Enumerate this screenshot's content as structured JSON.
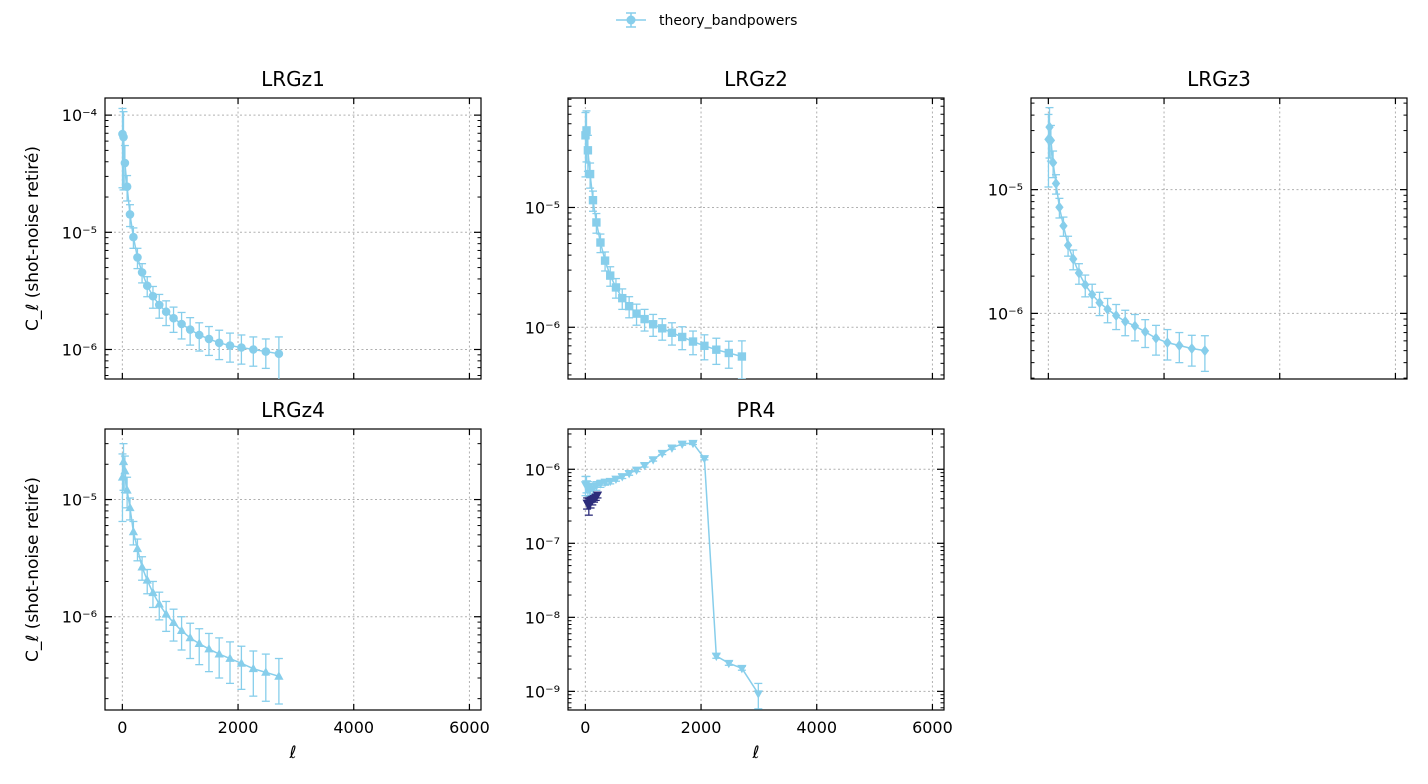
{
  "legend": {
    "label": "theory_bandpowers",
    "color": "#87ceeb"
  },
  "chart_data": [
    {
      "type": "line",
      "title": "LRGz1",
      "ylabel": "C_ℓ  (shot-noise retiré)",
      "yscale": "log",
      "xlim": [
        -300,
        6200
      ],
      "ylim": [
        5.6e-07,
        0.00014
      ],
      "show_x_ticklabels": false,
      "marker": "circle",
      "grid": true,
      "series": [
        {
          "name": "theory_bandpowers",
          "color": "#87ceeb",
          "x": [
            2,
            20,
            44,
            82,
            132,
            191,
            261,
            341,
            430,
            529,
            638,
            757,
            885,
            1024,
            1172,
            1329,
            1497,
            1674,
            1861,
            2058,
            2264,
            2480,
            2706
          ],
          "y": [
            6.9e-05,
            6.5e-05,
            3.9e-05,
            2.45e-05,
            1.42e-05,
            9.1e-06,
            6.1e-06,
            4.55e-06,
            3.5e-06,
            2.85e-06,
            2.4e-06,
            2.1e-06,
            1.85e-06,
            1.65e-06,
            1.48e-06,
            1.33e-06,
            1.23e-06,
            1.14e-06,
            1.08e-06,
            1.04e-06,
            1e-06,
            9.6e-07,
            9.2e-07
          ],
          "err": [
            4.5e-05,
            4.2e-05,
            1.6e-05,
            6e-06,
            3e-06,
            1.8e-06,
            1.2e-06,
            8.5e-07,
            6.8e-07,
            6e-07,
            5.5e-07,
            5e-07,
            4.5e-07,
            4.2e-07,
            3.9e-07,
            3.6e-07,
            3.4e-07,
            3.2e-07,
            3e-07,
            2.9e-07,
            2.8e-07,
            2.7e-07,
            3.6e-07
          ]
        }
      ]
    },
    {
      "type": "line",
      "title": "LRGz2",
      "ylabel": "",
      "yscale": "log",
      "xlim": [
        -300,
        6200
      ],
      "ylim": [
        3.7e-07,
        8.2e-05
      ],
      "show_x_ticklabels": false,
      "marker": "square",
      "grid": true,
      "series": [
        {
          "name": "theory_bandpowers",
          "color": "#87ceeb",
          "x": [
            2,
            20,
            44,
            82,
            132,
            191,
            261,
            341,
            430,
            529,
            638,
            757,
            885,
            1024,
            1172,
            1329,
            1497,
            1674,
            1861,
            2058,
            2264,
            2480,
            2706
          ],
          "y": [
            4e-05,
            4.4e-05,
            3e-05,
            1.9e-05,
            1.15e-05,
            7.5e-06,
            5.1e-06,
            3.6e-06,
            2.7e-06,
            2.15e-06,
            1.75e-06,
            1.5e-06,
            1.3e-06,
            1.17e-06,
            1.06e-06,
            9.8e-07,
            9e-07,
            8.3e-07,
            7.6e-07,
            7e-07,
            6.5e-07,
            6.1e-07,
            5.7e-07
          ],
          "err": [
            2.2e-05,
            2e-05,
            1e-05,
            4.5e-06,
            2.2e-06,
            1.4e-06,
            9e-07,
            6.5e-07,
            5e-07,
            4e-07,
            3.4e-07,
            3e-07,
            2.6e-07,
            2.4e-07,
            2.2e-07,
            2e-07,
            1.9e-07,
            1.8e-07,
            1.7e-07,
            1.65e-07,
            1.6e-07,
            1.55e-07,
            2e-07
          ]
        }
      ]
    },
    {
      "type": "line",
      "title": "LRGz3",
      "ylabel": "",
      "yscale": "log",
      "xlim": [
        -300,
        6200
      ],
      "ylim": [
        2.95e-07,
        5.5e-05
      ],
      "show_x_ticklabels": false,
      "marker": "diamond",
      "grid": true,
      "series": [
        {
          "name": "theory_bandpowers",
          "color": "#87ceeb",
          "x": [
            2,
            20,
            44,
            82,
            132,
            191,
            261,
            341,
            430,
            529,
            638,
            757,
            885,
            1024,
            1172,
            1329,
            1497,
            1674,
            1861,
            2058,
            2264,
            2480,
            2706
          ],
          "y": [
            2.55e-05,
            3.2e-05,
            2.5e-05,
            1.65e-05,
            1.12e-05,
            7.2e-06,
            5.1e-06,
            3.55e-06,
            2.75e-06,
            2.12e-06,
            1.7e-06,
            1.42e-06,
            1.22e-06,
            1.08e-06,
            9.6e-07,
            8.6e-07,
            7.9e-07,
            7.1e-07,
            6.3e-07,
            5.8e-07,
            5.5e-07,
            5.2e-07,
            5e-07
          ],
          "err": [
            1.5e-05,
            1.4e-05,
            8e-06,
            4e-06,
            2e-06,
            1.3e-06,
            9e-07,
            6.5e-07,
            5e-07,
            4e-07,
            3.4e-07,
            3e-07,
            2.6e-07,
            2.4e-07,
            2.2e-07,
            2e-07,
            1.9e-07,
            1.8e-07,
            1.7e-07,
            1.6e-07,
            1.5e-07,
            1.45e-07,
            1.6e-07
          ]
        }
      ]
    },
    {
      "type": "line",
      "title": "LRGz4",
      "ylabel": "C_ℓ  (shot-noise retiré)",
      "yscale": "log",
      "xlim": [
        -300,
        6200
      ],
      "ylim": [
        1.6e-07,
        4e-05
      ],
      "show_x_ticklabels": true,
      "xlabel": "ℓ",
      "xticks": [
        0,
        2000,
        4000,
        6000
      ],
      "marker": "triangle-up",
      "grid": true,
      "series": [
        {
          "name": "theory_bandpowers",
          "color": "#87ceeb",
          "x": [
            2,
            20,
            44,
            82,
            132,
            191,
            261,
            341,
            430,
            529,
            638,
            757,
            885,
            1024,
            1172,
            1329,
            1497,
            1674,
            1861,
            2058,
            2264,
            2480,
            2706
          ],
          "y": [
            1.55e-05,
            2.1e-05,
            1.75e-05,
            1.2e-05,
            8.5e-06,
            5.3e-06,
            3.8e-06,
            2.65e-06,
            2.05e-06,
            1.6e-06,
            1.28e-06,
            1.05e-06,
            8.9e-07,
            7.6e-07,
            6.6e-07,
            5.9e-07,
            5.3e-07,
            4.8e-07,
            4.4e-07,
            4e-07,
            3.6e-07,
            3.35e-07,
            3.1e-07
          ],
          "err": [
            9e-06,
            9e-06,
            6e-06,
            3.5e-06,
            1.8e-06,
            1.2e-06,
            8e-07,
            6e-07,
            4.8e-07,
            4e-07,
            3.4e-07,
            3e-07,
            2.7e-07,
            2.4e-07,
            2.2e-07,
            2e-07,
            1.9e-07,
            1.8e-07,
            1.7e-07,
            1.6e-07,
            1.5e-07,
            1.45e-07,
            1.3e-07
          ]
        }
      ]
    },
    {
      "type": "line",
      "title": "PR4",
      "ylabel": "",
      "yscale": "log",
      "xlim": [
        -300,
        6200
      ],
      "ylim": [
        5.6e-10,
        3.5e-06
      ],
      "show_x_ticklabels": true,
      "xlabel": "ℓ",
      "xticks": [
        0,
        2000,
        4000,
        6000
      ],
      "marker": "triangle-down",
      "grid": true,
      "series": [
        {
          "name": "theory_bandpowers",
          "color": "#87ceeb",
          "x": [
            2,
            20,
            44,
            82,
            132,
            191,
            261,
            341,
            430,
            529,
            638,
            757,
            885,
            1024,
            1172,
            1329,
            1497,
            1674,
            1861,
            2058,
            2264,
            2480,
            2706,
            2990
          ],
          "y": [
            6.2e-07,
            6.4e-07,
            5.6e-07,
            5.3e-07,
            5.5e-07,
            6e-07,
            6.4e-07,
            6.7e-07,
            6.9e-07,
            7.4e-07,
            8e-07,
            8.8e-07,
            9.8e-07,
            1.13e-06,
            1.35e-06,
            1.65e-06,
            1.95e-06,
            2.2e-06,
            2.25e-06,
            1.4e-06,
            3e-09,
            2.4e-09,
            2.05e-09,
            9.3e-10
          ],
          "err": [
            1.8e-07,
            1.6e-07,
            1.2e-07,
            1e-07,
            9e-08,
            8e-08,
            7e-08,
            6e-08,
            5.5e-08,
            5e-08,
            5e-08,
            5e-08,
            5e-08,
            6e-08,
            6e-08,
            7e-08,
            8e-08,
            9e-08,
            9e-08,
            6e-08,
            2e-10,
            1.5e-10,
            1.2e-10,
            3.5e-10
          ]
        },
        {
          "name": "",
          "color": "#2c2c7a",
          "x": [
            30,
            60,
            90,
            120,
            150,
            180,
            210
          ],
          "y": [
            3.5e-07,
            3.2e-07,
            3.6e-07,
            3.8e-07,
            4e-07,
            4.2e-07,
            4.5e-07
          ],
          "err": [
            6e-08,
            8e-08,
            6e-08,
            5e-08,
            4e-08,
            4e-08,
            4e-08
          ]
        }
      ]
    }
  ]
}
